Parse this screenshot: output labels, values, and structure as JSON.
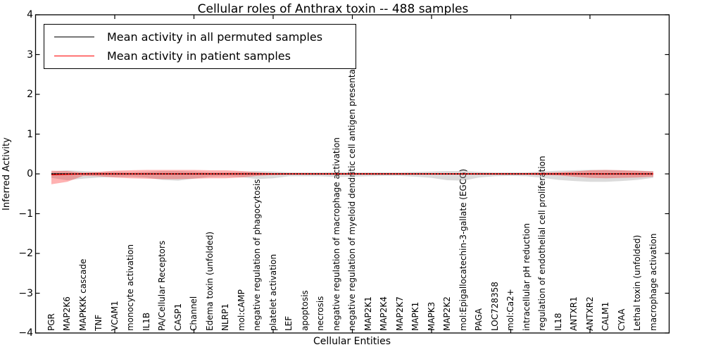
{
  "chart_data": {
    "type": "line",
    "title": "Cellular roles of Anthrax toxin -- 488 samples",
    "xlabel": "Cellular Entities",
    "ylabel": "Inferred Activity",
    "xlim": [
      0,
      40
    ],
    "ylim": [
      -4,
      4
    ],
    "yticks": [
      -4,
      -3,
      -2,
      -1,
      0,
      1,
      2,
      3,
      4
    ],
    "xticks": [
      5,
      10,
      15,
      20,
      25,
      30,
      35
    ],
    "grid": false,
    "legend_position": "upper left",
    "categories": [
      "PGR",
      "MAP2K6",
      "MAPKKK cascade",
      "TNF",
      "VCAM1",
      "monocyte activation",
      "IL1B",
      "PA/Cellular Receptors",
      "CASP1",
      "Channel",
      "Edema toxin (unfolded)",
      "NLRP1",
      "mol:cAMP",
      "negative regulation of phagocytosis",
      "platelet activation",
      "LEF",
      "apoptosis",
      "necrosis",
      "negative regulation of macrophage activation",
      "negative regulation of myeloid dendritic cell antigen presentation",
      "MAP2K1",
      "MAP2K4",
      "MAP2K7",
      "MAPK1",
      "MAPK3",
      "MAP2K2",
      "mol:Epigallocatechin-3-gallate (EGCG)",
      "PAGA",
      "LOC728358",
      "mol:Ca2+",
      "intracellular pH reduction",
      "regulation of endothelial cell proliferation",
      "IL18",
      "ANTXR1",
      "ANTXR2",
      "CALM1",
      "CYAA",
      "Lethal toxin (unfolded)",
      "macrophage activation"
    ],
    "series": [
      {
        "name": "Mean activity in all permuted samples",
        "color": "#000000",
        "line_style": "solid",
        "values": [
          0,
          0,
          0,
          0,
          0,
          0,
          0,
          0,
          0,
          0,
          0,
          0,
          0,
          0,
          0,
          0,
          0,
          0,
          0,
          0,
          0,
          0,
          0,
          0,
          0,
          0,
          0,
          0,
          0,
          0,
          0,
          0,
          0,
          0,
          0,
          0,
          0,
          0,
          0
        ],
        "band": {
          "upper": [
            0.06,
            0.09,
            0.07,
            0.05,
            0.05,
            0.04,
            0.05,
            0.07,
            0.07,
            0.06,
            0.04,
            0.04,
            0.05,
            0.07,
            0.06,
            0.04,
            0.04,
            0.04,
            0.05,
            0.04,
            0.04,
            0.04,
            0.04,
            0.05,
            0.06,
            0.07,
            0.07,
            0.05,
            0.04,
            0.04,
            0.04,
            0.06,
            0.08,
            0.09,
            0.1,
            0.1,
            0.09,
            0.08,
            0.07
          ],
          "lower": [
            -0.1,
            -0.16,
            -0.12,
            -0.09,
            -0.08,
            -0.07,
            -0.09,
            -0.15,
            -0.17,
            -0.12,
            -0.07,
            -0.06,
            -0.08,
            -0.13,
            -0.11,
            -0.06,
            -0.06,
            -0.06,
            -0.08,
            -0.07,
            -0.06,
            -0.05,
            -0.05,
            -0.07,
            -0.1,
            -0.16,
            -0.17,
            -0.09,
            -0.06,
            -0.05,
            -0.06,
            -0.1,
            -0.15,
            -0.18,
            -0.2,
            -0.2,
            -0.18,
            -0.15,
            -0.1
          ],
          "color": "#999999",
          "opacity": 0.35
        }
      },
      {
        "name": "Mean activity in patient samples",
        "color": "#ff0000",
        "line_style": "solid",
        "values": [
          -0.02,
          -0.01,
          0,
          0,
          0,
          0,
          0,
          0,
          0,
          0,
          0,
          0,
          0,
          0,
          0,
          0,
          0,
          0,
          0,
          0,
          0,
          0,
          0,
          0,
          0,
          0,
          0,
          0,
          0,
          0,
          0,
          0,
          0,
          0,
          0,
          0,
          0,
          0,
          0
        ],
        "band": {
          "upper": [
            0.08,
            0.07,
            0.03,
            0.05,
            0.08,
            0.09,
            0.1,
            0.1,
            0.1,
            0.1,
            0.09,
            0.09,
            0.07,
            0.04,
            0.02,
            0.02,
            0.02,
            0.02,
            0.02,
            0.02,
            0.02,
            0.02,
            0.02,
            0.02,
            0.02,
            0.02,
            0.02,
            0.02,
            0.02,
            0.02,
            0.02,
            0.03,
            0.04,
            0.06,
            0.09,
            0.1,
            0.09,
            0.08,
            0.06
          ],
          "lower": [
            -0.26,
            -0.2,
            -0.05,
            -0.06,
            -0.09,
            -0.11,
            -0.12,
            -0.13,
            -0.13,
            -0.12,
            -0.11,
            -0.11,
            -0.09,
            -0.05,
            -0.03,
            -0.02,
            -0.02,
            -0.02,
            -0.02,
            -0.02,
            -0.02,
            -0.02,
            -0.02,
            -0.02,
            -0.02,
            -0.02,
            -0.02,
            -0.02,
            -0.02,
            -0.02,
            -0.02,
            -0.03,
            -0.04,
            -0.07,
            -0.1,
            -0.11,
            -0.1,
            -0.09,
            -0.07
          ],
          "color": "#ff0000",
          "opacity": 0.3
        }
      }
    ],
    "reference_line": {
      "y": 0,
      "color": "#000000",
      "style": "dotted"
    }
  }
}
